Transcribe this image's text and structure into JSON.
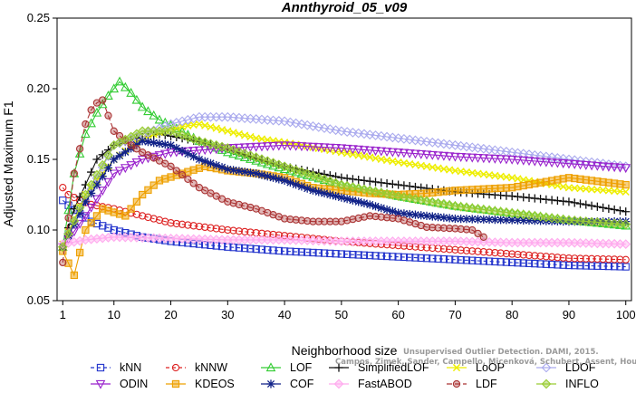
{
  "chart_data": {
    "type": "line",
    "title": "Annthyroid_05_v09",
    "xlabel": "Neighborhood size",
    "ylabel": "Adjusted Maximum F1",
    "xlim": [
      0,
      101
    ],
    "ylim": [
      0.05,
      0.25
    ],
    "xticks": [
      1,
      10,
      20,
      30,
      40,
      50,
      60,
      70,
      80,
      90,
      100
    ],
    "yticks": [
      "0.05",
      "0.10",
      "0.15",
      "0.20",
      "0.25"
    ],
    "grid": false,
    "legend_position": "bottom",
    "watermark": "Campos, Zimek, Sander, Campello, Micenková, Schubert, Assent, Houle",
    "watermark2": "Unsupervised Outlier Detection. DAMI, 2015.",
    "series": [
      {
        "name": "kNN",
        "color": "#2233cc",
        "marker": "square",
        "dash": "4,3",
        "points": [
          [
            1,
            0.121
          ],
          [
            3,
            0.114
          ],
          [
            6,
            0.106
          ],
          [
            10,
            0.1
          ],
          [
            15,
            0.095
          ],
          [
            20,
            0.092
          ],
          [
            30,
            0.088
          ],
          [
            40,
            0.085
          ],
          [
            50,
            0.083
          ],
          [
            60,
            0.081
          ],
          [
            70,
            0.079
          ],
          [
            80,
            0.077
          ],
          [
            90,
            0.075
          ],
          [
            100,
            0.074
          ]
        ]
      },
      {
        "name": "kNNW",
        "color": "#dd2222",
        "marker": "circle",
        "dash": "4,3",
        "points": [
          [
            1,
            0.13
          ],
          [
            2,
            0.125
          ],
          [
            4,
            0.121
          ],
          [
            6,
            0.118
          ],
          [
            10,
            0.115
          ],
          [
            15,
            0.11
          ],
          [
            20,
            0.105
          ],
          [
            30,
            0.1
          ],
          [
            40,
            0.096
          ],
          [
            50,
            0.092
          ],
          [
            60,
            0.089
          ],
          [
            70,
            0.086
          ],
          [
            80,
            0.083
          ],
          [
            90,
            0.08
          ],
          [
            100,
            0.079
          ]
        ]
      },
      {
        "name": "LOF",
        "color": "#33cc33",
        "marker": "triangle-up",
        "dash": "",
        "points": [
          [
            1,
            0.088
          ],
          [
            3,
            0.14
          ],
          [
            5,
            0.168
          ],
          [
            7,
            0.183
          ],
          [
            9,
            0.195
          ],
          [
            11,
            0.205
          ],
          [
            13,
            0.197
          ],
          [
            15,
            0.187
          ],
          [
            18,
            0.178
          ],
          [
            20,
            0.174
          ],
          [
            25,
            0.163
          ],
          [
            30,
            0.155
          ],
          [
            40,
            0.143
          ],
          [
            50,
            0.132
          ],
          [
            60,
            0.124
          ],
          [
            70,
            0.117
          ],
          [
            80,
            0.112
          ],
          [
            90,
            0.107
          ],
          [
            100,
            0.103
          ]
        ]
      },
      {
        "name": "SimplifiedLOF",
        "color": "#111111",
        "marker": "plus",
        "dash": "",
        "points": [
          [
            1,
            0.088
          ],
          [
            3,
            0.115
          ],
          [
            5,
            0.132
          ],
          [
            7,
            0.15
          ],
          [
            10,
            0.16
          ],
          [
            14,
            0.165
          ],
          [
            18,
            0.168
          ],
          [
            22,
            0.165
          ],
          [
            28,
            0.16
          ],
          [
            34,
            0.152
          ],
          [
            40,
            0.145
          ],
          [
            50,
            0.137
          ],
          [
            60,
            0.132
          ],
          [
            70,
            0.127
          ],
          [
            80,
            0.124
          ],
          [
            90,
            0.12
          ],
          [
            100,
            0.113
          ]
        ]
      },
      {
        "name": "LoOP",
        "color": "#eeee00",
        "marker": "x",
        "dash": "",
        "points": [
          [
            1,
            0.09
          ],
          [
            5,
            0.125
          ],
          [
            10,
            0.15
          ],
          [
            15,
            0.165
          ],
          [
            20,
            0.172
          ],
          [
            25,
            0.175
          ],
          [
            30,
            0.17
          ],
          [
            35,
            0.165
          ],
          [
            40,
            0.162
          ],
          [
            50,
            0.155
          ],
          [
            60,
            0.148
          ],
          [
            70,
            0.142
          ],
          [
            80,
            0.137
          ],
          [
            90,
            0.13
          ],
          [
            100,
            0.127
          ]
        ]
      },
      {
        "name": "LDOF",
        "color": "#aaaaee",
        "marker": "diamond",
        "dash": "",
        "points": [
          [
            1,
            0.09
          ],
          [
            10,
            0.16
          ],
          [
            20,
            0.175
          ],
          [
            25,
            0.18
          ],
          [
            30,
            0.18
          ],
          [
            40,
            0.177
          ],
          [
            50,
            0.17
          ],
          [
            60,
            0.165
          ],
          [
            70,
            0.16
          ],
          [
            80,
            0.155
          ],
          [
            90,
            0.15
          ],
          [
            100,
            0.145
          ]
        ]
      },
      {
        "name": "ODIN",
        "color": "#9922cc",
        "marker": "triangle-down",
        "dash": "",
        "points": [
          [
            1,
            0.088
          ],
          [
            5,
            0.11
          ],
          [
            10,
            0.14
          ],
          [
            15,
            0.15
          ],
          [
            20,
            0.155
          ],
          [
            30,
            0.158
          ],
          [
            40,
            0.16
          ],
          [
            50,
            0.158
          ],
          [
            60,
            0.155
          ],
          [
            70,
            0.152
          ],
          [
            80,
            0.15
          ],
          [
            90,
            0.147
          ],
          [
            100,
            0.144
          ]
        ]
      },
      {
        "name": "KDEOS",
        "color": "#eea000",
        "marker": "filled-square",
        "dash": "",
        "points": [
          [
            1,
            0.085
          ],
          [
            3,
            0.068
          ],
          [
            5,
            0.1
          ],
          [
            8,
            0.115
          ],
          [
            12,
            0.11
          ],
          [
            15,
            0.125
          ],
          [
            18,
            0.135
          ],
          [
            22,
            0.14
          ],
          [
            26,
            0.145
          ],
          [
            30,
            0.142
          ],
          [
            35,
            0.14
          ],
          [
            40,
            0.137
          ],
          [
            45,
            0.13
          ],
          [
            50,
            0.128
          ],
          [
            55,
            0.126
          ],
          [
            60,
            0.125
          ],
          [
            65,
            0.126
          ],
          [
            70,
            0.128
          ],
          [
            80,
            0.13
          ],
          [
            90,
            0.137
          ],
          [
            100,
            0.132
          ]
        ]
      },
      {
        "name": "COF",
        "color": "#112288",
        "marker": "star",
        "dash": "",
        "points": [
          [
            1,
            0.088
          ],
          [
            5,
            0.12
          ],
          [
            10,
            0.15
          ],
          [
            15,
            0.163
          ],
          [
            20,
            0.16
          ],
          [
            25,
            0.15
          ],
          [
            30,
            0.143
          ],
          [
            35,
            0.14
          ],
          [
            40,
            0.135
          ],
          [
            45,
            0.128
          ],
          [
            50,
            0.123
          ],
          [
            55,
            0.118
          ],
          [
            60,
            0.112
          ],
          [
            65,
            0.11
          ],
          [
            70,
            0.108
          ],
          [
            80,
            0.107
          ],
          [
            90,
            0.106
          ],
          [
            100,
            0.106
          ]
        ]
      },
      {
        "name": "FastABOD",
        "color": "#ffaaee",
        "marker": "filled-diamond",
        "dash": "",
        "points": [
          [
            1,
            0.09
          ],
          [
            5,
            0.093
          ],
          [
            10,
            0.095
          ],
          [
            20,
            0.094
          ],
          [
            30,
            0.093
          ],
          [
            40,
            0.093
          ],
          [
            50,
            0.092
          ],
          [
            60,
            0.092
          ],
          [
            70,
            0.092
          ],
          [
            80,
            0.091
          ],
          [
            90,
            0.091
          ],
          [
            100,
            0.09
          ]
        ]
      },
      {
        "name": "LDF",
        "color": "#aa3333",
        "marker": "circle-dot",
        "dash": "6,3",
        "points": [
          [
            1,
            0.077
          ],
          [
            3,
            0.14
          ],
          [
            5,
            0.175
          ],
          [
            6,
            0.185
          ],
          [
            7,
            0.19
          ],
          [
            8,
            0.192
          ],
          [
            10,
            0.17
          ],
          [
            13,
            0.16
          ],
          [
            15,
            0.155
          ],
          [
            20,
            0.145
          ],
          [
            25,
            0.13
          ],
          [
            30,
            0.12
          ],
          [
            35,
            0.115
          ],
          [
            40,
            0.108
          ],
          [
            45,
            0.106
          ],
          [
            50,
            0.106
          ],
          [
            55,
            0.11
          ],
          [
            60,
            0.108
          ],
          [
            65,
            0.102
          ],
          [
            70,
            0.101
          ],
          [
            73,
            0.1
          ],
          [
            75,
            0.095
          ]
        ]
      },
      {
        "name": "INFLO",
        "color": "#99cc33",
        "marker": "filled-diamond",
        "dash": "",
        "points": [
          [
            1,
            0.088
          ],
          [
            5,
            0.125
          ],
          [
            10,
            0.16
          ],
          [
            15,
            0.17
          ],
          [
            20,
            0.17
          ],
          [
            25,
            0.163
          ],
          [
            30,
            0.158
          ],
          [
            40,
            0.145
          ],
          [
            50,
            0.132
          ],
          [
            60,
            0.124
          ],
          [
            70,
            0.117
          ],
          [
            80,
            0.112
          ],
          [
            90,
            0.107
          ],
          [
            100,
            0.104
          ]
        ]
      }
    ],
    "legend_order": [
      "kNN",
      "kNNW",
      "LOF",
      "SimplifiedLOF",
      "LoOP",
      "LDOF",
      "ODIN",
      "KDEOS",
      "COF",
      "FastABOD",
      "LDF",
      "INFLO"
    ]
  }
}
